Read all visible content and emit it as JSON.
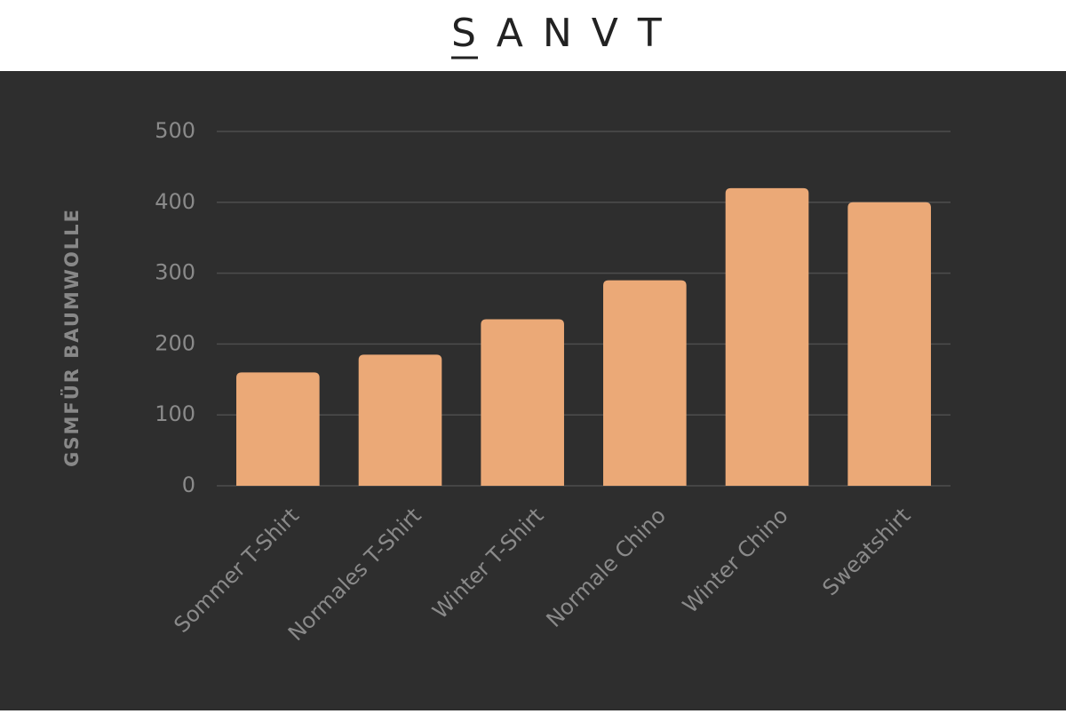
{
  "logo": "SANVT",
  "chart_data": {
    "type": "bar",
    "y_label": "GSMFÜR BAUMWOLLE",
    "categories": [
      "Sommer T-Shirt",
      "Normales T-Shirt",
      "Winter T-Shirt",
      "Normale Chino",
      "Winter Chino",
      "Sweatshirt"
    ],
    "values": [
      160,
      185,
      235,
      290,
      420,
      400
    ],
    "color": "#eba977",
    "ylim": [
      0,
      500
    ],
    "yticks": [
      0,
      100,
      200,
      300,
      400,
      500
    ],
    "grid": true
  }
}
